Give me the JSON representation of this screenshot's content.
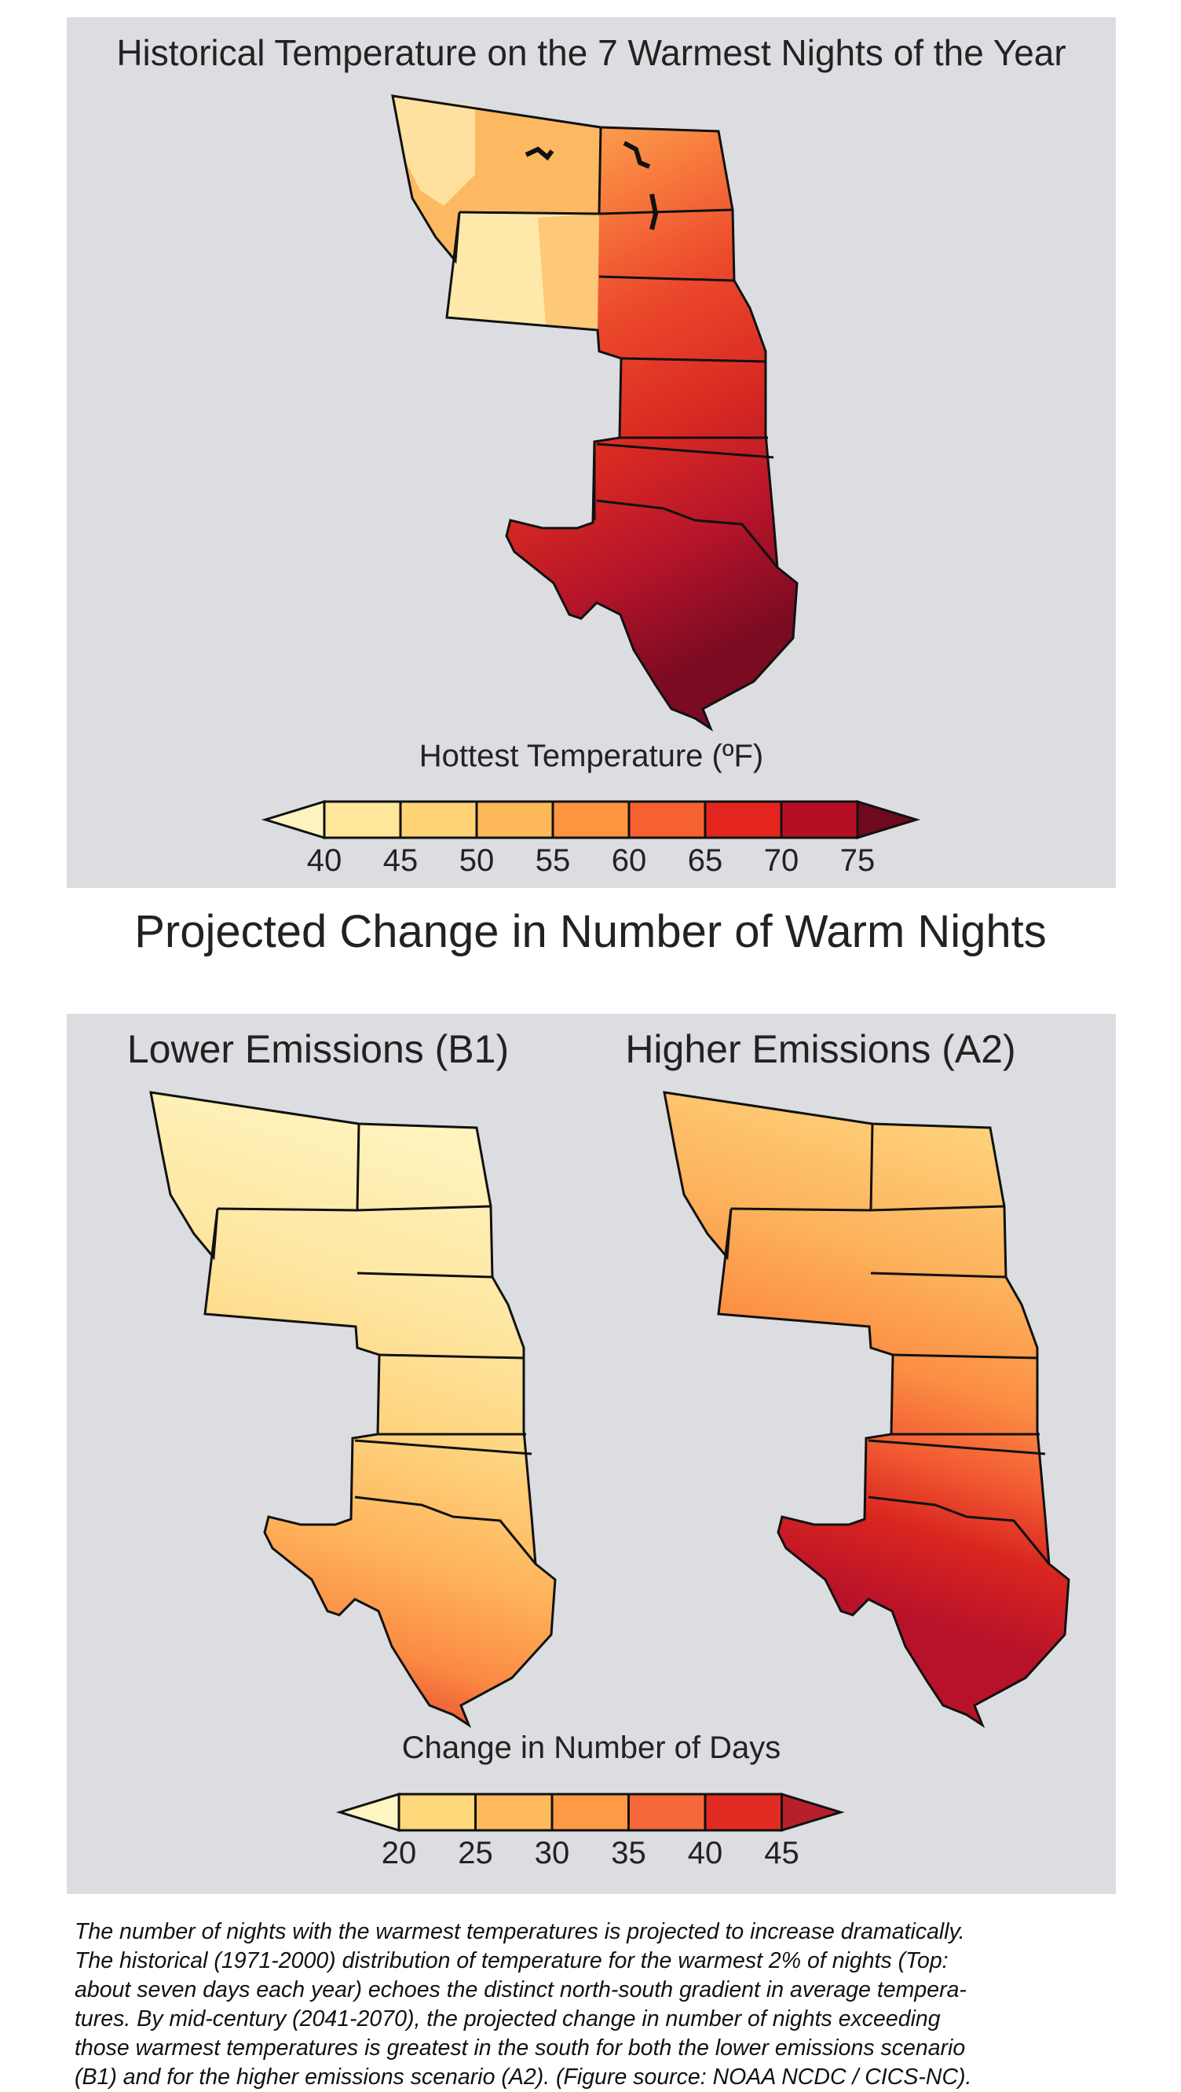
{
  "top_panel": {
    "title": "Historical Temperature on the 7 Warmest Nights of the Year",
    "legend": {
      "title": "Hottest Temperature (ºF)",
      "ticks": [
        "40",
        "45",
        "50",
        "55",
        "60",
        "65",
        "70",
        "75"
      ],
      "colors": [
        "#fff4c0",
        "#fee79a",
        "#fed477",
        "#fdb85a",
        "#fc9440",
        "#f5612f",
        "#e4251f",
        "#b50f26",
        "#6f0a1e"
      ]
    }
  },
  "section_title": "Projected Change in Number of Warm Nights",
  "bottom_panel": {
    "maps": [
      {
        "title": "Lower Emissions (B1)"
      },
      {
        "title": "Higher Emissions (A2)"
      }
    ],
    "legend": {
      "title": "Change in Number of Days",
      "ticks": [
        "20",
        "25",
        "30",
        "35",
        "40",
        "45"
      ],
      "colors": [
        "#fff5c2",
        "#fed87a",
        "#feba5c",
        "#fd9a45",
        "#f6683a",
        "#e02c22",
        "#b7202a"
      ]
    }
  },
  "caption_lines": [
    "The number of nights with the warmest temperatures is projected to increase dramatically.",
    "The historical (1971-2000) distribution of temperature for the warmest 2% of nights (Top:",
    "about seven days each year) echoes the distinct north-south gradient in average tempera-",
    "tures. By mid-century (2041-2070), the projected change in number of nights exceeding",
    "those warmest temperatures is greatest in the south for both the lower emissions scenario",
    "(B1) and for the higher emissions scenario (A2). (Figure source: NOAA NCDC / CICS-NC)."
  ]
}
